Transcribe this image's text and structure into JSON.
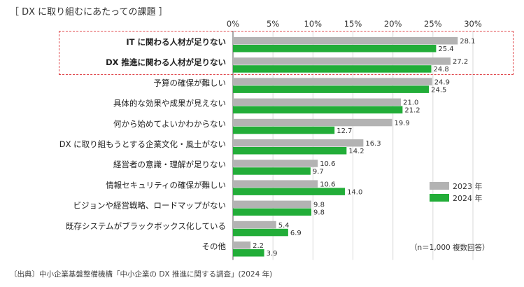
{
  "title": "［ DX に取り組むにあたっての課題 ］",
  "note": "（n＝1,000 複数回答）",
  "source": "〔出典〕中小企業基盤整備機構「中小企業の DX 推進に関する調査」(2024 年)",
  "colors": {
    "series_2023": "#b3b3b3",
    "series_2024": "#22ad38",
    "highlight": "#e0474c"
  },
  "chart_data": {
    "type": "bar",
    "orientation": "horizontal",
    "categories": [
      "IT に関わる人材が足りない",
      "DX 推進に関わる人材が足りない",
      "予算の確保が難しい",
      "具体的な効果や成果が見えない",
      "何から始めてよいかわからない",
      "DX に取り組もうとする企業文化・風土がない",
      "経営者の意識・理解が足りない",
      "情報セキュリティの確保が難しい",
      "ビジョンや経営戦略、ロードマップがない",
      "既存システムがブラックボックス化している",
      "その他"
    ],
    "highlighted_categories": [
      0,
      1
    ],
    "series": [
      {
        "name": "2023 年",
        "values": [
          28.1,
          27.2,
          24.9,
          21.0,
          19.9,
          16.3,
          10.6,
          10.6,
          9.8,
          5.4,
          2.2
        ]
      },
      {
        "name": "2024 年",
        "values": [
          25.4,
          24.8,
          24.5,
          21.2,
          12.7,
          14.2,
          9.7,
          14.0,
          9.8,
          6.9,
          3.9
        ]
      }
    ],
    "x_ticks": [
      "0%",
      "5%",
      "10%",
      "15%",
      "20%",
      "25%",
      "30%"
    ],
    "xlim": [
      0,
      30
    ],
    "grid": true,
    "legend_position": "right"
  }
}
